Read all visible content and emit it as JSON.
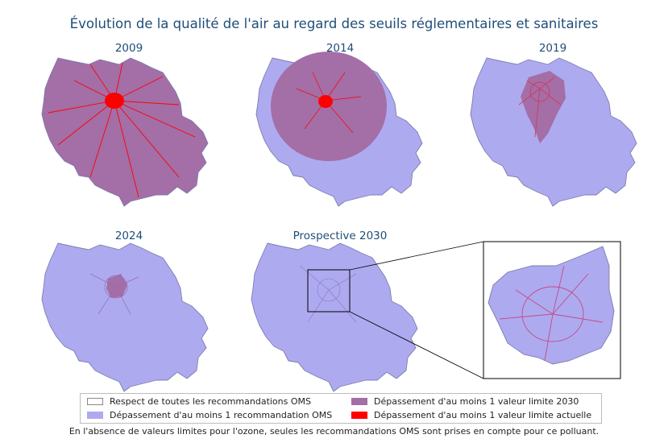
{
  "title": "Évolution de la qualité de l'air au regard des seuils réglementaires et sanitaires",
  "panels": [
    {
      "label": "2009"
    },
    {
      "label": "2014"
    },
    {
      "label": "2019"
    },
    {
      "label": "2024"
    },
    {
      "label": "Prospective 2030"
    }
  ],
  "legend": {
    "items": [
      {
        "label": "Respect de toutes les recommandations OMS",
        "color": "#ffffff"
      },
      {
        "label": "Dépassement d'au moins 1 recommandation OMS",
        "color": "#aeaaf0"
      },
      {
        "label": "Dépassement d'au moins 1 valeur limite 2030",
        "color": "#a46ea7"
      },
      {
        "label": "Dépassement d'au moins 1 valeur limite actuelle",
        "color": "#ff0000"
      }
    ]
  },
  "note": "En l'absence de valeurs limites pour l'ozone, seules les recommandations OMS sont prises en compte pour ce polluant."
}
